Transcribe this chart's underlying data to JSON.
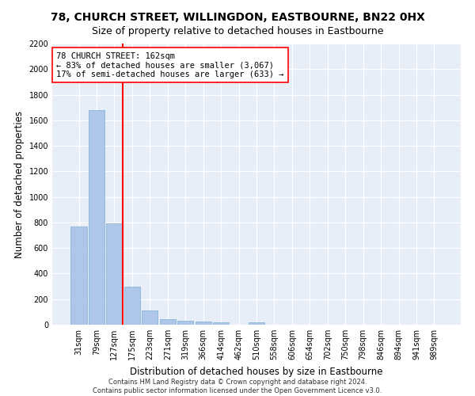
{
  "title": "78, CHURCH STREET, WILLINGDON, EASTBOURNE, BN22 0HX",
  "subtitle": "Size of property relative to detached houses in Eastbourne",
  "xlabel": "Distribution of detached houses by size in Eastbourne",
  "ylabel": "Number of detached properties",
  "categories": [
    "31sqm",
    "79sqm",
    "127sqm",
    "175sqm",
    "223sqm",
    "271sqm",
    "319sqm",
    "366sqm",
    "414sqm",
    "462sqm",
    "510sqm",
    "558sqm",
    "606sqm",
    "654sqm",
    "702sqm",
    "750sqm",
    "798sqm",
    "846sqm",
    "894sqm",
    "941sqm",
    "989sqm"
  ],
  "values": [
    770,
    1680,
    795,
    300,
    110,
    45,
    30,
    25,
    20,
    0,
    20,
    0,
    0,
    0,
    0,
    0,
    0,
    0,
    0,
    0,
    0
  ],
  "bar_color": "#aec6e8",
  "bar_edge_color": "#7aafd4",
  "background_color": "#e8eef8",
  "grid_color": "#ffffff",
  "vline_color": "red",
  "annotation_text": "78 CHURCH STREET: 162sqm\n← 83% of detached houses are smaller (3,067)\n17% of semi-detached houses are larger (633) →",
  "annotation_box_color": "white",
  "annotation_box_edge": "red",
  "ylim": [
    0,
    2200
  ],
  "yticks": [
    0,
    200,
    400,
    600,
    800,
    1000,
    1200,
    1400,
    1600,
    1800,
    2000,
    2200
  ],
  "footer": "Contains HM Land Registry data © Crown copyright and database right 2024.\nContains public sector information licensed under the Open Government Licence v3.0.",
  "title_fontsize": 10,
  "subtitle_fontsize": 9,
  "xlabel_fontsize": 8.5,
  "ylabel_fontsize": 8.5,
  "annotation_fontsize": 7.5,
  "tick_fontsize": 7,
  "footer_fontsize": 6
}
